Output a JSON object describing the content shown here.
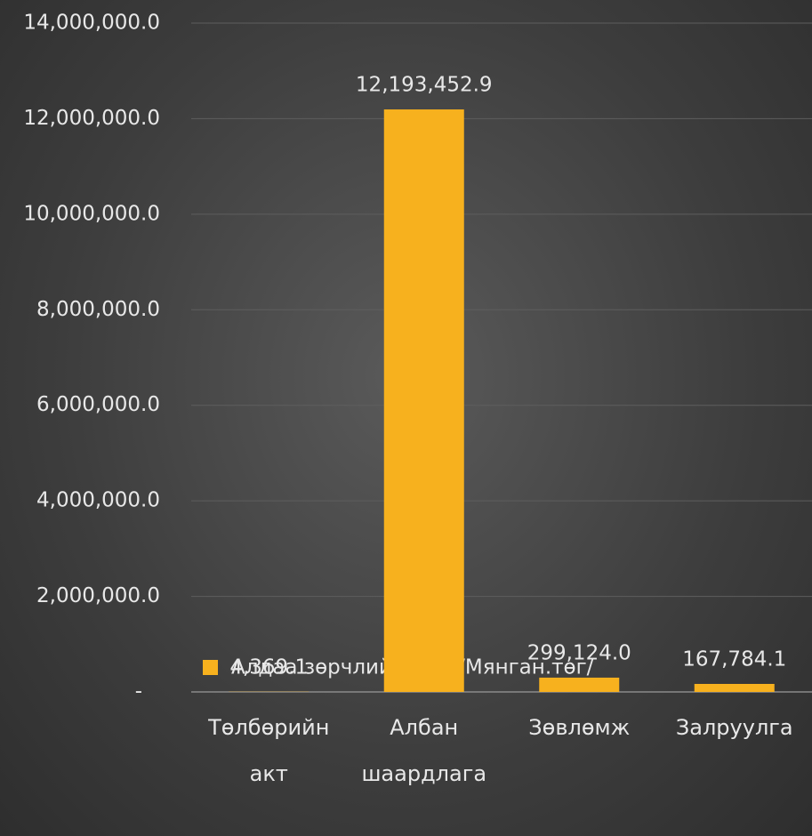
{
  "chart_data": {
    "type": "bar",
    "categories": [
      "Төлбөрийн акт",
      "Албан шаардлага",
      "Зөвлөмж",
      "Залруулга"
    ],
    "series": [
      {
        "name": "Алдаа зөрчлийн дүн /Мянган.төг/",
        "color": "#F7B11E",
        "values": [
          4369.1,
          12193452.9,
          299124.0,
          167784.1
        ],
        "value_labels": [
          "4,369.1",
          "12,193,452.9",
          "299,124.0",
          "167,784.1"
        ]
      }
    ],
    "ylim": [
      0,
      14000000
    ],
    "yticks": [
      {
        "value": 0,
        "label": "-"
      },
      {
        "value": 2000000,
        "label": "2,000,000.0"
      },
      {
        "value": 4000000,
        "label": "4,000,000.0"
      },
      {
        "value": 6000000,
        "label": "6,000,000.0"
      },
      {
        "value": 8000000,
        "label": "8,000,000.0"
      },
      {
        "value": 10000000,
        "label": "10,000,000.0"
      },
      {
        "value": 12000000,
        "label": "12,000,000.0"
      },
      {
        "value": 14000000,
        "label": "14,000,000.0"
      }
    ],
    "grid": true
  }
}
